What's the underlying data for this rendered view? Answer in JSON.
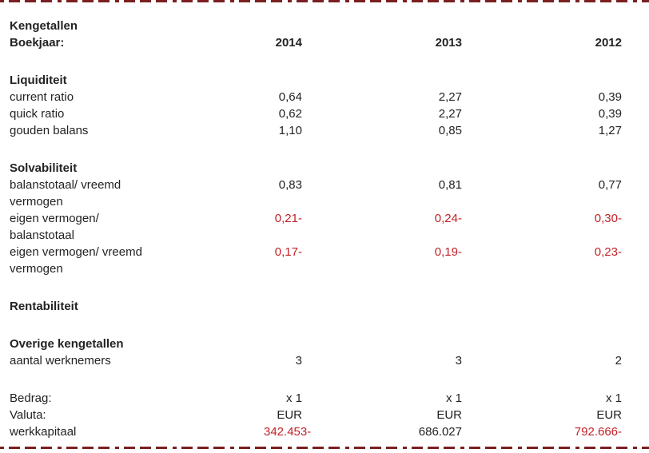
{
  "colors": {
    "text": "#232323",
    "negative": "#c22126",
    "cutline": "#7a2020"
  },
  "table": {
    "rows": [
      {
        "type": "title",
        "label": "Kengetallen"
      },
      {
        "type": "header",
        "label": "Boekjaar:",
        "values": [
          "2014",
          "2013",
          "2012"
        ]
      },
      {
        "type": "spacer"
      },
      {
        "type": "section",
        "label": "Liquiditeit"
      },
      {
        "type": "data",
        "label": "current ratio",
        "values": [
          "0,64",
          "2,27",
          "0,39"
        ]
      },
      {
        "type": "data",
        "label": "quick ratio",
        "values": [
          "0,62",
          "2,27",
          "0,39"
        ]
      },
      {
        "type": "data",
        "label": "gouden balans",
        "values": [
          "1,10",
          "0,85",
          "1,27"
        ]
      },
      {
        "type": "spacer"
      },
      {
        "type": "section",
        "label": "Solvabiliteit"
      },
      {
        "type": "data",
        "label": "balanstotaal/ vreemd",
        "label2": "vermogen",
        "values": [
          "0,83",
          "0,81",
          "0,77"
        ]
      },
      {
        "type": "data",
        "label": "eigen vermogen/",
        "label2": "balanstotaal",
        "values": [
          "0,21-",
          "0,24-",
          "0,30-"
        ]
      },
      {
        "type": "data",
        "label": "eigen vermogen/ vreemd",
        "label2": "vermogen",
        "values": [
          "0,17-",
          "0,19-",
          "0,23-"
        ]
      },
      {
        "type": "spacer"
      },
      {
        "type": "section",
        "label": "Rentabiliteit"
      },
      {
        "type": "spacer"
      },
      {
        "type": "section",
        "label": "Overige kengetallen"
      },
      {
        "type": "data",
        "label": "aantal werknemers",
        "values": [
          "3",
          "3",
          "2"
        ]
      },
      {
        "type": "spacer"
      },
      {
        "type": "data",
        "label": "Bedrag:",
        "values": [
          "x 1",
          "x 1",
          "x 1"
        ]
      },
      {
        "type": "data",
        "label": "Valuta:",
        "values": [
          "EUR",
          "EUR",
          "EUR"
        ]
      },
      {
        "type": "data",
        "label": "werkkapitaal",
        "values": [
          "342.453-",
          "686.027",
          "792.666-"
        ]
      }
    ]
  }
}
